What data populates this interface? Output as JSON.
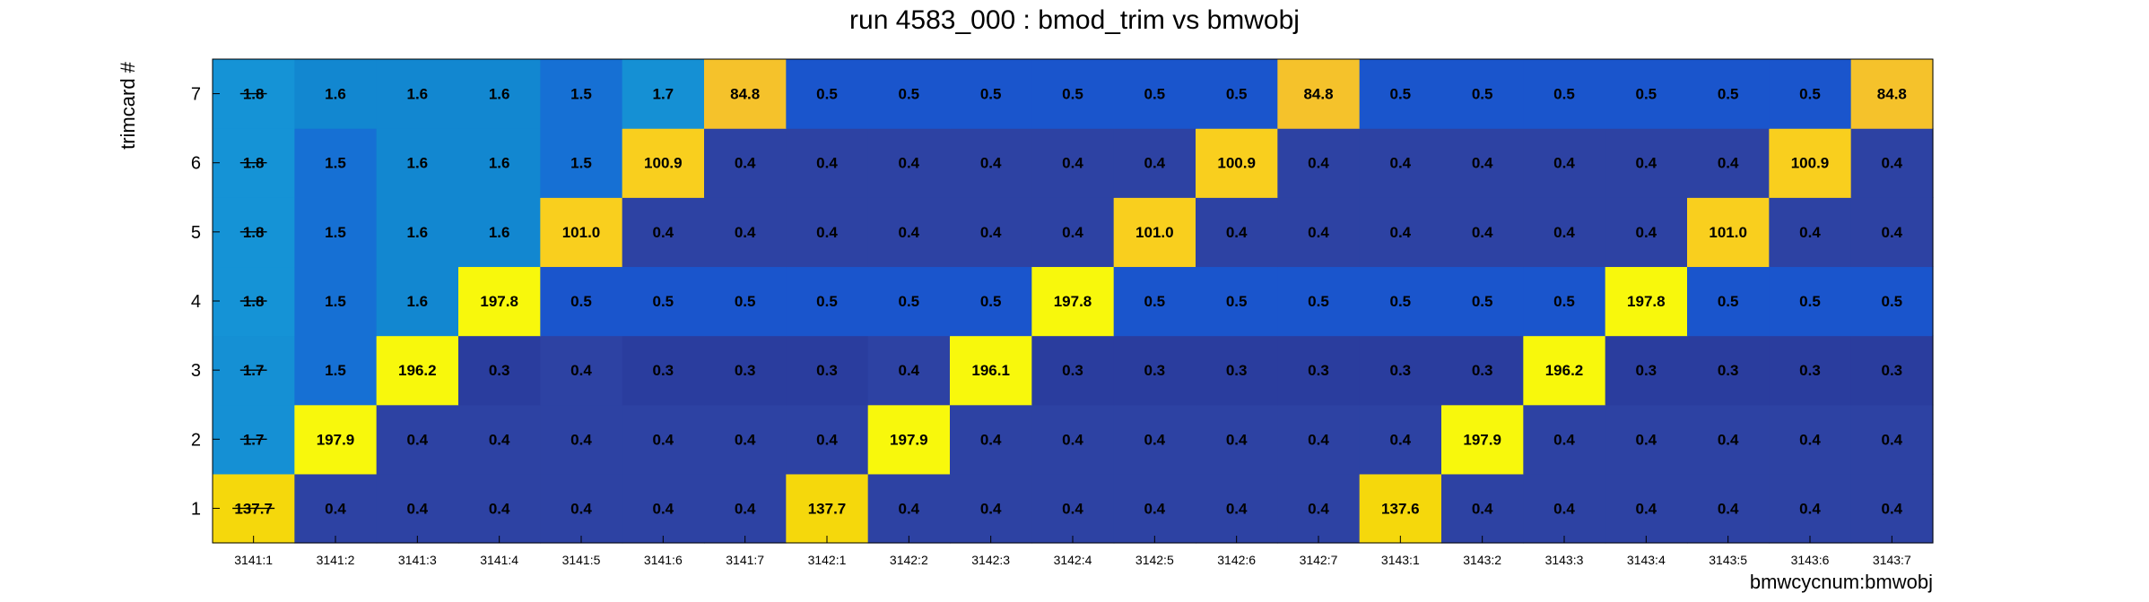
{
  "chart_data": {
    "type": "heatmap",
    "title": "run 4583_000 : bmod_trim vs bmwobj",
    "xlabel": "bmwcycnum:bmwobj",
    "ylabel": "trimcard #",
    "x_categories": [
      "3141:1",
      "3141:2",
      "3141:3",
      "3141:4",
      "3141:5",
      "3141:6",
      "3141:7",
      "3142:1",
      "3142:2",
      "3142:3",
      "3142:4",
      "3142:5",
      "3142:6",
      "3142:7",
      "3143:1",
      "3143:2",
      "3143:3",
      "3143:4",
      "3143:5",
      "3143:6",
      "3143:7"
    ],
    "y_categories": [
      "1",
      "2",
      "3",
      "4",
      "5",
      "6",
      "7"
    ],
    "values": [
      [
        "137.7",
        "0.4",
        "0.4",
        "0.4",
        "0.4",
        "0.4",
        "0.4",
        "137.7",
        "0.4",
        "0.4",
        "0.4",
        "0.4",
        "0.4",
        "0.4",
        "137.6",
        "0.4",
        "0.4",
        "0.4",
        "0.4",
        "0.4",
        "0.4"
      ],
      [
        "1.7",
        "197.9",
        "0.4",
        "0.4",
        "0.4",
        "0.4",
        "0.4",
        "0.4",
        "197.9",
        "0.4",
        "0.4",
        "0.4",
        "0.4",
        "0.4",
        "0.4",
        "197.9",
        "0.4",
        "0.4",
        "0.4",
        "0.4",
        "0.4"
      ],
      [
        "1.7",
        "1.5",
        "196.2",
        "0.3",
        "0.4",
        "0.3",
        "0.3",
        "0.3",
        "0.4",
        "196.1",
        "0.3",
        "0.3",
        "0.3",
        "0.3",
        "0.3",
        "0.3",
        "196.2",
        "0.3",
        "0.3",
        "0.3",
        "0.3"
      ],
      [
        "1.8",
        "1.5",
        "1.6",
        "197.8",
        "0.5",
        "0.5",
        "0.5",
        "0.5",
        "0.5",
        "0.5",
        "197.8",
        "0.5",
        "0.5",
        "0.5",
        "0.5",
        "0.5",
        "0.5",
        "197.8",
        "0.5",
        "0.5",
        "0.5"
      ],
      [
        "1.8",
        "1.5",
        "1.6",
        "1.6",
        "101.0",
        "0.4",
        "0.4",
        "0.4",
        "0.4",
        "0.4",
        "0.4",
        "101.0",
        "0.4",
        "0.4",
        "0.4",
        "0.4",
        "0.4",
        "0.4",
        "101.0",
        "0.4",
        "0.4"
      ],
      [
        "1.8",
        "1.5",
        "1.6",
        "1.6",
        "1.5",
        "100.9",
        "0.4",
        "0.4",
        "0.4",
        "0.4",
        "0.4",
        "0.4",
        "100.9",
        "0.4",
        "0.4",
        "0.4",
        "0.4",
        "0.4",
        "0.4",
        "100.9",
        "0.4"
      ],
      [
        "1.8",
        "1.6",
        "1.6",
        "1.6",
        "1.5",
        "1.7",
        "84.8",
        "0.5",
        "0.5",
        "0.5",
        "0.5",
        "0.5",
        "0.5",
        "84.8",
        "0.5",
        "0.5",
        "0.5",
        "0.5",
        "0.5",
        "0.5",
        "84.8"
      ]
    ],
    "strikethrough_column": "3141:1",
    "colors": {
      "0.3": "#2a3d9e",
      "0.4": "#2d42a3",
      "0.5": "#1a55cc",
      "1.5": "#1670d4",
      "1.6": "#1287d0",
      "1.7": "#1590d4",
      "1.8": "#1593d6",
      "84.8": "#f5c22b",
      "100.9": "#f9cf1e",
      "101.0": "#f9cf1e",
      "137.6": "#f5d80c",
      "137.7": "#f5d80c",
      "196.1": "#f8f80c",
      "196.2": "#f8f80c",
      "197.8": "#f8f80c",
      "197.9": "#f8f80c"
    }
  }
}
